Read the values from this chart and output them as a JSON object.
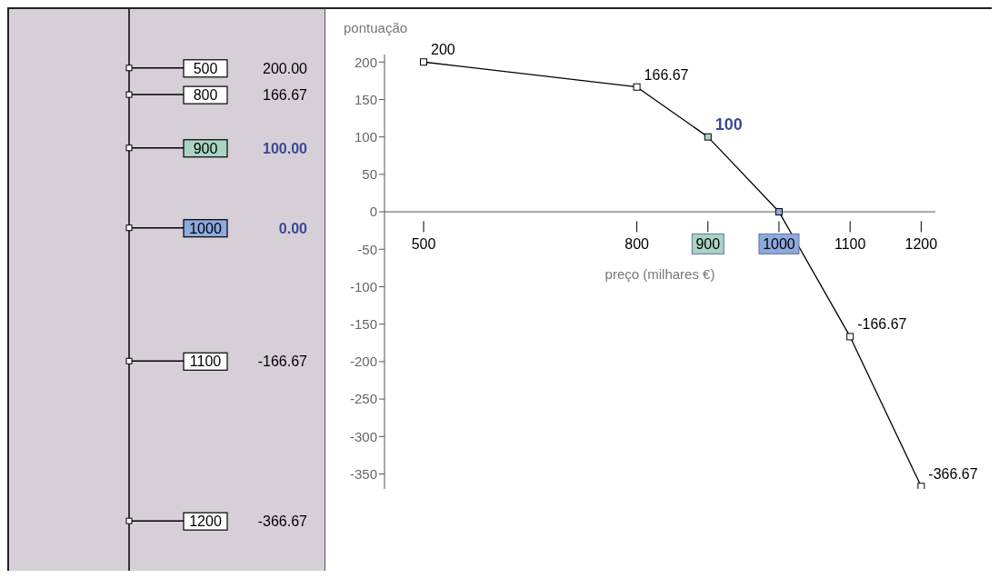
{
  "chart_data": [
    {
      "type": "other",
      "categories": [
        "500",
        "800",
        "900",
        "1000",
        "1100",
        "1200"
      ],
      "values": [
        200,
        166.67,
        100,
        0,
        -166.67,
        -366.67
      ],
      "value_labels": [
        "200.00",
        "166.67",
        "100.00",
        "0.00",
        "-166.67",
        "-366.67"
      ]
    },
    {
      "type": "line",
      "x": [
        500,
        800,
        900,
        1000,
        1100,
        1200
      ],
      "values": [
        200,
        166.67,
        100,
        0,
        -166.67,
        -366.67
      ],
      "color": "#000000",
      "colors": [
        "#ffffff",
        "#ffffff",
        "#a9d4c4",
        "#8ea9de",
        "#ffffff",
        "#ffffff"
      ],
      "value_labels": [
        "200",
        "166.67",
        "100",
        null,
        "-166.67",
        "-366.67"
      ],
      "xlabel": "preço (milhares €)",
      "ylabel": "pontuação",
      "xlim": [
        445,
        1220
      ],
      "ylim": [
        -370,
        210
      ],
      "xticks": [
        500,
        800,
        900,
        1000,
        1100,
        1200
      ],
      "yticks": [
        -350,
        -300,
        -250,
        -200,
        -150,
        -100,
        -50,
        0,
        50,
        100,
        150,
        200
      ],
      "marker": "square",
      "grid": false
    }
  ]
}
